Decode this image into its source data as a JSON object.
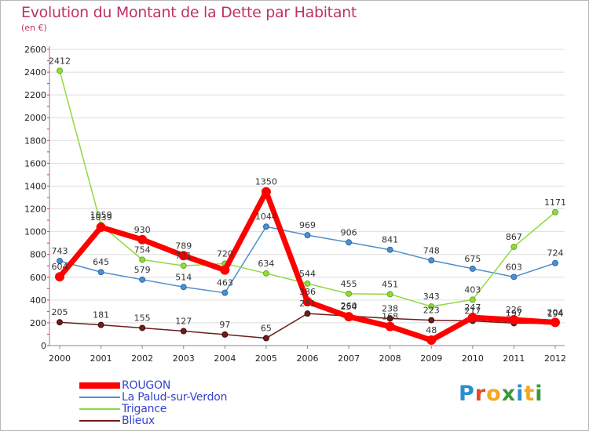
{
  "page": {
    "title": "Evolution du Montant de la Dette par Habitant",
    "unit": "(en €)",
    "brand": "Proxiti"
  },
  "colors": {
    "title": "#c0306a",
    "legend_text": "#3344cc",
    "grid": "#dddddd"
  },
  "chart_data": {
    "type": "line",
    "title": "Evolution du Montant de la Dette par Habitant",
    "subtitle": "(en €)",
    "xlabel": "",
    "ylabel": "",
    "x": [
      "2000",
      "2001",
      "2002",
      "2003",
      "2004",
      "2005",
      "2006",
      "2007",
      "2008",
      "2009",
      "2010",
      "2011",
      "2012"
    ],
    "ylim": [
      0,
      2600
    ],
    "yticks": [
      0,
      200,
      400,
      600,
      800,
      1000,
      1200,
      1400,
      1600,
      1800,
      2000,
      2200,
      2400,
      2600
    ],
    "grid": "horizontal",
    "legend_position": "bottom-left",
    "series": [
      {
        "name": "ROUGON",
        "color": "#ff0000",
        "values": [
          604,
          1039,
          930,
          789,
          663,
          1350,
          386,
          254,
          168,
          48,
          247,
          226,
          204
        ],
        "labels": [
          "604",
          "1039",
          "930",
          "789",
          "",
          "1350",
          "386",
          "254",
          "168",
          "48",
          "247",
          "226",
          "204"
        ]
      },
      {
        "name": "La Palud-sur-Verdon",
        "color": "#4f8fcc",
        "values": [
          743,
          645,
          579,
          514,
          463,
          1044,
          969,
          906,
          841,
          748,
          675,
          603,
          724
        ],
        "labels": [
          "743",
          "645",
          "579",
          "514",
          "463",
          "1044",
          "969",
          "906",
          "841",
          "748",
          "675",
          "603",
          "724"
        ]
      },
      {
        "name": "Trigance",
        "color": "#8fda3f",
        "values": [
          2412,
          1059,
          754,
          701,
          720,
          634,
          544,
          455,
          451,
          343,
          403,
          867,
          1171
        ],
        "labels": [
          "2412",
          "1059",
          "754",
          "701",
          "720",
          "634",
          "544",
          "455",
          "451",
          "343",
          "403",
          "867",
          "1171"
        ]
      },
      {
        "name": "Blieux",
        "color": "#6e1d1d",
        "values": [
          205,
          181,
          155,
          127,
          97,
          65,
          281,
          260,
          238,
          223,
          217,
          197,
          194
        ],
        "labels": [
          "205",
          "181",
          "155",
          "127",
          "97",
          "65",
          "281",
          "260",
          "238",
          "223",
          "217",
          "197",
          "194"
        ]
      }
    ]
  }
}
